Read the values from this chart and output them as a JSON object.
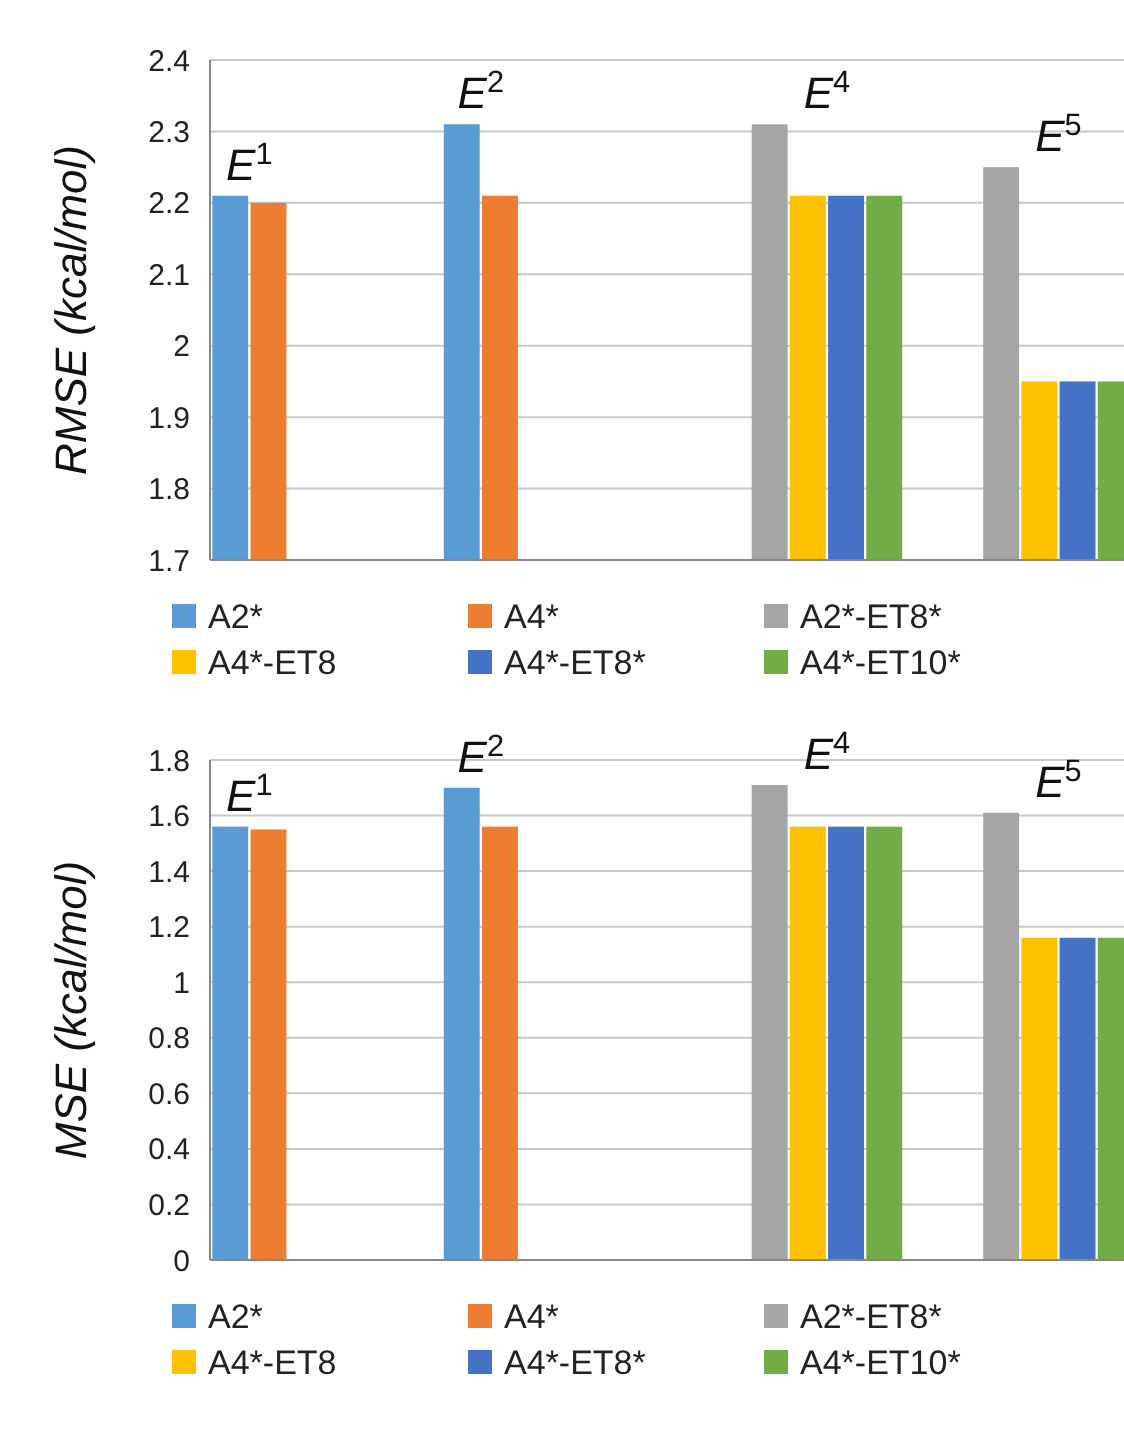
{
  "chart_data": [
    {
      "type": "bar",
      "ylabel": "RMSE (kcal/mol)",
      "categories": [
        null,
        null,
        null,
        null
      ],
      "ylim": [
        1.7,
        2.4
      ],
      "yticks": [
        1.7,
        1.8,
        1.9,
        2,
        2.1,
        2.2,
        2.3,
        2.4
      ],
      "grid": "y",
      "legend": "bottom",
      "annotations": [
        "E$^{1}$",
        "E$^{2}$",
        "E$^{4}$",
        "E$^{5}$"
      ],
      "series": [
        {
          "name": "A2*",
          "color": "#5b9bd5",
          "values": [
            2.21,
            2.31,
            null,
            null
          ]
        },
        {
          "name": "A4*",
          "color": "#ed7d31",
          "values": [
            2.2,
            2.21,
            null,
            null
          ]
        },
        {
          "name": "A2*-ET8*",
          "color": "#a5a5a5",
          "values": [
            null,
            null,
            2.31,
            2.25
          ]
        },
        {
          "name": "A4*-ET8",
          "color": "#ffc000",
          "values": [
            null,
            null,
            2.21,
            1.95
          ]
        },
        {
          "name": "A4*-ET8*",
          "color": "#4472c4",
          "values": [
            null,
            null,
            2.21,
            1.95
          ]
        },
        {
          "name": "A4*-ET10*",
          "color": "#70ad47",
          "values": [
            null,
            null,
            2.21,
            1.95
          ]
        }
      ]
    },
    {
      "type": "bar",
      "ylabel": "MSE (kcal/mol)",
      "categories": [
        null,
        null,
        null,
        null
      ],
      "ylim": [
        0,
        1.8
      ],
      "yticks": [
        0,
        0.2,
        0.4,
        0.6,
        0.8,
        1,
        1.2,
        1.4,
        1.6,
        1.8
      ],
      "grid": "y",
      "legend": "bottom",
      "annotations": [
        "E$^{1}$",
        "E$^{2}$",
        "E$^{4}$",
        "E$^{5}$"
      ],
      "series": [
        {
          "name": "A2*",
          "color": "#5b9bd5",
          "values": [
            1.56,
            1.7,
            null,
            null
          ]
        },
        {
          "name": "A4*",
          "color": "#ed7d31",
          "values": [
            1.55,
            1.56,
            null,
            null
          ]
        },
        {
          "name": "A2*-ET8*",
          "color": "#a5a5a5",
          "values": [
            null,
            null,
            1.71,
            1.61
          ]
        },
        {
          "name": "A4*-ET8",
          "color": "#ffc000",
          "values": [
            null,
            null,
            1.56,
            1.16
          ]
        },
        {
          "name": "A4*-ET8*",
          "color": "#4472c4",
          "values": [
            null,
            null,
            1.56,
            1.16
          ]
        },
        {
          "name": "A4*-ET10*",
          "color": "#70ad47",
          "values": [
            null,
            null,
            1.56,
            1.16
          ]
        }
      ]
    }
  ]
}
